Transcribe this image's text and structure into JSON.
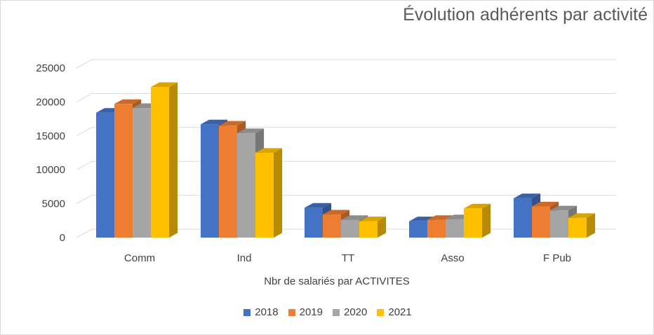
{
  "chart_data": {
    "type": "bar",
    "style": "3d-clustered-column",
    "title": "Évolution adhérents par activité",
    "xlabel": "Nbr de salariés par ACTIVITES",
    "ylabel": "",
    "ylim": [
      0,
      25000
    ],
    "yticks": [
      0,
      5000,
      10000,
      15000,
      20000,
      25000
    ],
    "grid": true,
    "legend_position": "bottom",
    "categories": [
      "Comm",
      "Ind",
      "TT",
      "Asso",
      "F Pub"
    ],
    "series": [
      {
        "name": "2018",
        "color": "#4472c4",
        "values": [
          18400,
          16700,
          4400,
          2400,
          5800
        ]
      },
      {
        "name": "2019",
        "color": "#ed7d31",
        "values": [
          19700,
          16500,
          3400,
          2600,
          4600
        ]
      },
      {
        "name": "2020",
        "color": "#a5a5a5",
        "values": [
          19100,
          15400,
          2600,
          2700,
          4000
        ]
      },
      {
        "name": "2021",
        "color": "#ffc000",
        "values": [
          22200,
          12500,
          2400,
          4300,
          2900
        ]
      }
    ]
  }
}
